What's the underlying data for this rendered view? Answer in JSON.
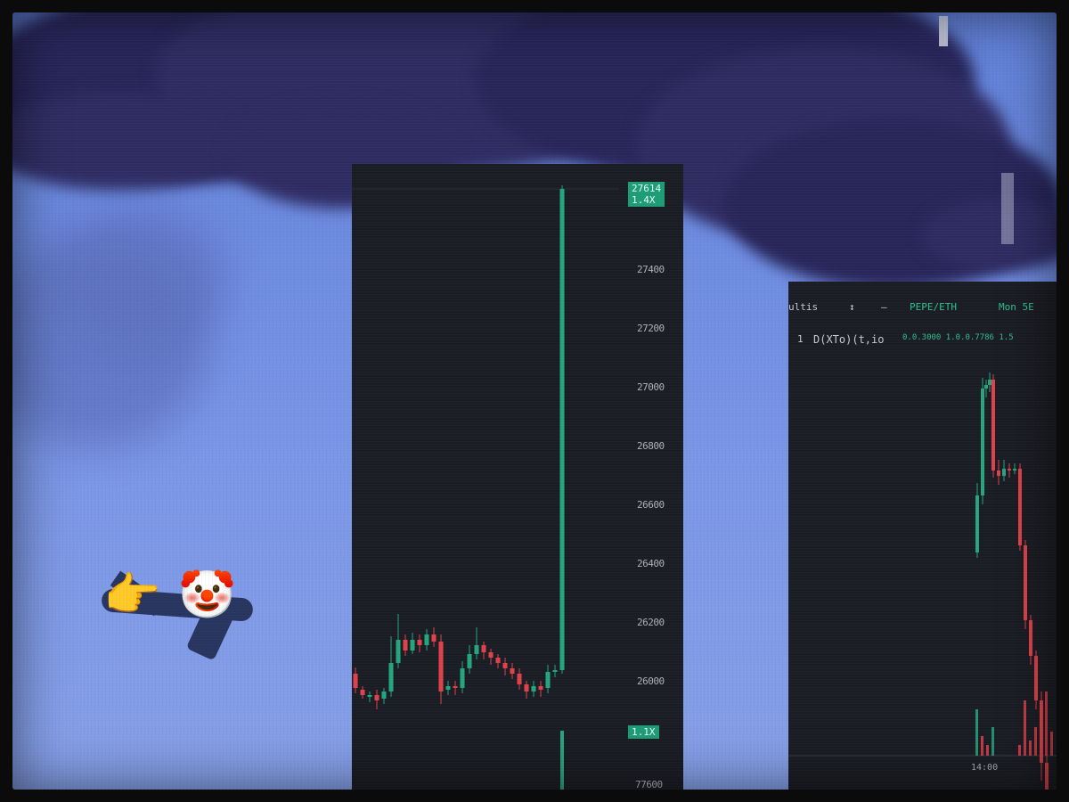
{
  "colors": {
    "sky": "#6d8be0",
    "smoke": "#2f2c63",
    "chart_bg": "#1b1d24",
    "up": "#26a67e",
    "down": "#e0424b"
  },
  "left_chart": {
    "price_labels": [
      "27400",
      "27200",
      "27000",
      "26800",
      "26600",
      "26400",
      "26200",
      "26000"
    ],
    "top_badge_line1": "27614",
    "top_badge_line2": "1.4X",
    "bottom_badge": "1.1X",
    "bottom_partial_label": "77600"
  },
  "right_chart": {
    "toolbar_left": "ultis",
    "toolbar_arrow": "↕",
    "toolbar_dash": "–",
    "pair": "PEPE/ETH",
    "pair_suffix": "Mon 5E",
    "legend_index": "1",
    "legend_name": "D(XTo)(t,io",
    "legend_values": "0.0.3000 1.0.0.7786 1.5",
    "time_label": "14:00"
  },
  "emojis": {
    "pointing_hand": "👉",
    "clown": "🤡"
  }
}
